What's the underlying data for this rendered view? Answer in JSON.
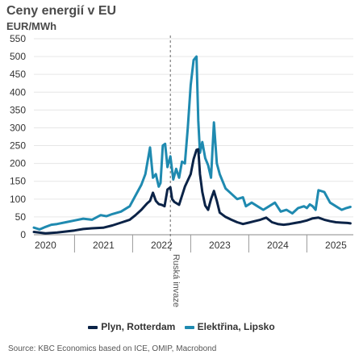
{
  "chart_data": {
    "type": "line",
    "title": "Ceny energií v EU",
    "ylabel": "EUR/MWh",
    "xlabel": "",
    "ylim": [
      0,
      550
    ],
    "yticks": [
      0,
      50,
      100,
      150,
      200,
      250,
      300,
      350,
      400,
      450,
      500,
      550
    ],
    "xlim": [
      2019.8,
      2025.3
    ],
    "xticks": [
      {
        "value": 2020.0,
        "label": "2020"
      },
      {
        "value": 2021.0,
        "label": "2021"
      },
      {
        "value": 2022.0,
        "label": "2022"
      },
      {
        "value": 2023.0,
        "label": "2023"
      },
      {
        "value": 2024.0,
        "label": "2024"
      },
      {
        "value": 2025.0,
        "label": "2025"
      }
    ],
    "grid": true,
    "legend_position": "bottom",
    "annotations": [
      {
        "x": 2022.15,
        "text": "Ruská invaze",
        "style": "dashed-vertical-line"
      }
    ],
    "series": [
      {
        "name": "Plyn, Rotterdam",
        "color": "#0b2347",
        "x": [
          2019.8,
          2020.0,
          2020.2,
          2020.35,
          2020.5,
          2020.65,
          2020.8,
          2021.0,
          2021.15,
          2021.3,
          2021.45,
          2021.55,
          2021.65,
          2021.75,
          2021.8,
          2021.85,
          2021.9,
          2021.95,
          2022.0,
          2022.05,
          2022.1,
          2022.15,
          2022.18,
          2022.22,
          2022.3,
          2022.4,
          2022.5,
          2022.55,
          2022.6,
          2022.63,
          2022.66,
          2022.7,
          2022.75,
          2022.8,
          2022.85,
          2022.9,
          2022.95,
          2023.0,
          2023.1,
          2023.2,
          2023.3,
          2023.4,
          2023.5,
          2023.6,
          2023.7,
          2023.8,
          2023.9,
          2024.0,
          2024.1,
          2024.2,
          2024.3,
          2024.4,
          2024.5,
          2024.6,
          2024.7,
          2024.8,
          2024.9,
          2025.0,
          2025.1,
          2025.2,
          2025.25
        ],
        "values": [
          8,
          4,
          6,
          9,
          12,
          16,
          18,
          20,
          26,
          34,
          42,
          55,
          70,
          88,
          95,
          118,
          95,
          86,
          84,
          80,
          127,
          133,
          100,
          92,
          84,
          135,
          170,
          212,
          238,
          240,
          170,
          120,
          82,
          70,
          100,
          123,
          95,
          62,
          50,
          42,
          35,
          30,
          34,
          38,
          42,
          48,
          35,
          30,
          28,
          30,
          33,
          36,
          40,
          46,
          48,
          42,
          38,
          35,
          34,
          33,
          32
        ]
      },
      {
        "name": "Elektřina, Lipsko",
        "color": "#1f8ab0",
        "x": [
          2019.8,
          2019.9,
          2020.0,
          2020.1,
          2020.2,
          2020.35,
          2020.5,
          2020.65,
          2020.8,
          2020.95,
          2021.05,
          2021.15,
          2021.3,
          2021.45,
          2021.55,
          2021.65,
          2021.72,
          2021.8,
          2021.85,
          2021.9,
          2021.95,
          2021.98,
          2022.02,
          2022.06,
          2022.1,
          2022.15,
          2022.2,
          2022.25,
          2022.3,
          2022.35,
          2022.4,
          2022.45,
          2022.5,
          2022.55,
          2022.6,
          2022.63,
          2022.66,
          2022.7,
          2022.75,
          2022.8,
          2022.85,
          2022.9,
          2022.95,
          2023.0,
          2023.1,
          2023.2,
          2023.3,
          2023.4,
          2023.45,
          2023.55,
          2023.65,
          2023.75,
          2023.85,
          2023.95,
          2024.05,
          2024.15,
          2024.25,
          2024.35,
          2024.45,
          2024.5,
          2024.55,
          2024.6,
          2024.65,
          2024.7,
          2024.8,
          2024.9,
          2025.0,
          2025.1,
          2025.18,
          2025.25
        ],
        "values": [
          20,
          15,
          22,
          28,
          30,
          35,
          40,
          45,
          42,
          55,
          52,
          58,
          65,
          80,
          110,
          140,
          170,
          245,
          160,
          170,
          135,
          145,
          250,
          255,
          190,
          220,
          155,
          185,
          160,
          205,
          200,
          300,
          420,
          490,
          500,
          320,
          230,
          260,
          215,
          195,
          160,
          315,
          200,
          170,
          130,
          115,
          100,
          105,
          80,
          90,
          80,
          70,
          80,
          90,
          65,
          70,
          60,
          75,
          80,
          75,
          85,
          80,
          70,
          125,
          120,
          90,
          80,
          70,
          75,
          78
        ]
      }
    ]
  },
  "legend": {
    "item1": "Plyn, Rotterdam",
    "item2": "Elektřina, Lipsko"
  },
  "source": "Source: KBC Economics based on ICE, OMIP, Macrobond"
}
